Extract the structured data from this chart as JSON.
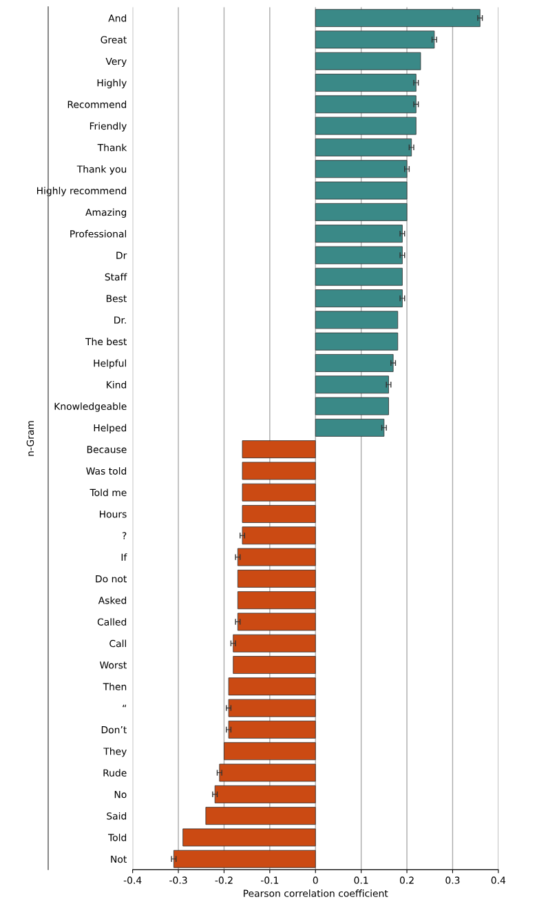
{
  "chart_data": {
    "type": "bar",
    "orientation": "horizontal",
    "xlabel": "Pearson correlation coefficient",
    "ylabel": "n-Gram",
    "categories": [
      "And",
      "Great",
      "Very",
      "Highly",
      "Recommend",
      "Friendly",
      "Thank",
      "Thank you",
      "Highly recommend",
      "Amazing",
      "Professional",
      "Dr",
      "Staff",
      "Best",
      "Dr.",
      "The best",
      "Helpful",
      "Kind",
      "Knowledgeable",
      "Helped",
      "Because",
      "Was told",
      "Told me",
      "Hours",
      "?",
      "If",
      "Do not",
      "Asked",
      "Called",
      "Call",
      "Worst",
      "Then",
      "“",
      "Don’t",
      "They",
      "Rude",
      "No",
      "Said",
      "Told",
      "Not"
    ],
    "values": [
      0.36,
      0.26,
      0.23,
      0.22,
      0.22,
      0.22,
      0.21,
      0.2,
      0.2,
      0.2,
      0.19,
      0.19,
      0.19,
      0.19,
      0.18,
      0.18,
      0.17,
      0.16,
      0.16,
      0.15,
      -0.16,
      -0.16,
      -0.16,
      -0.16,
      -0.16,
      -0.17,
      -0.17,
      -0.17,
      -0.17,
      -0.18,
      -0.18,
      -0.19,
      -0.19,
      -0.19,
      -0.2,
      -0.21,
      -0.22,
      -0.24,
      -0.29,
      -0.31
    ],
    "errors": [
      0.005,
      0.005,
      null,
      0.005,
      0.005,
      null,
      0.005,
      0.005,
      null,
      null,
      0.005,
      0.005,
      null,
      0.005,
      null,
      null,
      0.005,
      0.005,
      null,
      0.005,
      null,
      null,
      null,
      null,
      0.005,
      0.005,
      null,
      null,
      0.005,
      0.005,
      null,
      null,
      0.005,
      0.005,
      null,
      0.005,
      0.005,
      null,
      null,
      0.005
    ],
    "colors": [
      "#3a8987",
      "#3a8987",
      "#3a8987",
      "#3a8987",
      "#3a8987",
      "#3a8987",
      "#3a8987",
      "#3a8987",
      "#3a8987",
      "#3a8987",
      "#3a8987",
      "#3a8987",
      "#3a8987",
      "#3a8987",
      "#3a8987",
      "#3a8987",
      "#3a8987",
      "#3a8987",
      "#3a8987",
      "#3a8987",
      "#cb4a13",
      "#cb4a13",
      "#cb4a13",
      "#cb4a13",
      "#cb4a13",
      "#cb4a13",
      "#cb4a13",
      "#cb4a13",
      "#cb4a13",
      "#cb4a13",
      "#cb4a13",
      "#cb4a13",
      "#cb4a13",
      "#cb4a13",
      "#cb4a13",
      "#cb4a13",
      "#cb4a13",
      "#cb4a13",
      "#cb4a13",
      "#cb4a13"
    ],
    "xlim": [
      -0.4,
      0.4
    ],
    "xticks": [
      -0.4,
      -0.3,
      -0.2,
      -0.1,
      0,
      0.1,
      0.2,
      0.3,
      0.4
    ],
    "grid": "x"
  }
}
